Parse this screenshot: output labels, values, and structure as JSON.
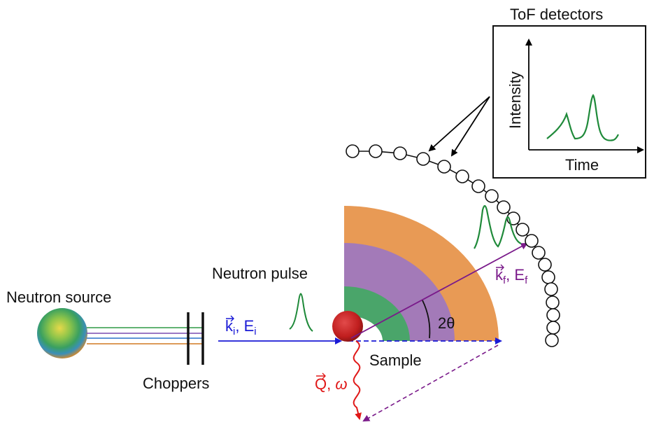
{
  "labels": {
    "tof_detectors": "ToF detectors",
    "intensity": "Intensity",
    "time": "Time",
    "neutron_pulse": "Neutron pulse",
    "neutron_source": "Neutron source",
    "choppers": "Choppers",
    "sample": "Sample",
    "angle": "2θ"
  },
  "vectors": {
    "ki": {
      "symbol": "k",
      "sub": "i",
      "energy": "E",
      "energy_sub": "i"
    },
    "kf": {
      "symbol": "k",
      "sub": "f",
      "energy": "E",
      "energy_sub": "f"
    },
    "q": {
      "symbol": "Q",
      "omega": "ω"
    }
  },
  "colors": {
    "incident": "#1a1ad6",
    "scattered": "#7a1a8a",
    "transfer": "#e01818",
    "pulse": "#1f8a3a",
    "ring_outer": "#e89a55",
    "ring_middle": "#a37ab8",
    "ring_inner": "#4aa56a"
  }
}
